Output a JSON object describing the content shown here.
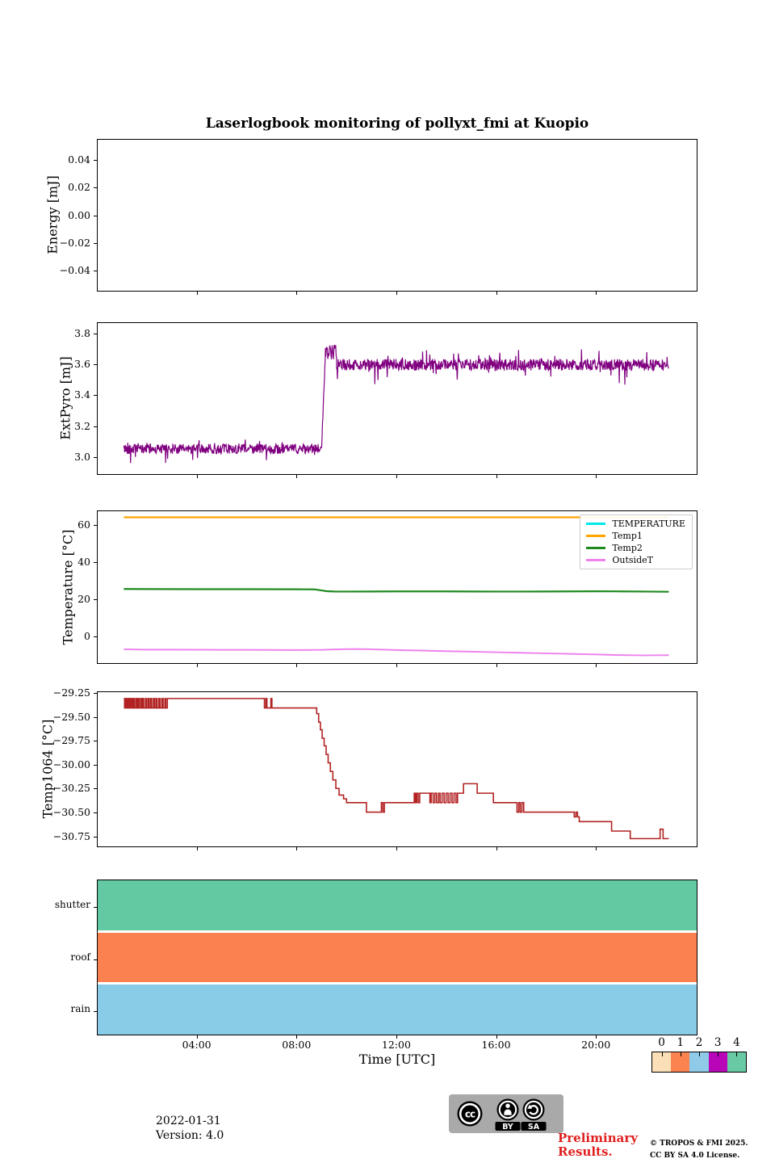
{
  "title": "Laserlogbook monitoring of pollyxt_fmi at Kuopio",
  "time_axis": {
    "label": "Time [UTC]",
    "range_hours": [
      0,
      24.07
    ],
    "ticks": [
      {
        "t": 4,
        "label": "04:00"
      },
      {
        "t": 8,
        "label": "08:00"
      },
      {
        "t": 12,
        "label": "12:00"
      },
      {
        "t": 16,
        "label": "16:00"
      },
      {
        "t": 20,
        "label": "20:00"
      }
    ]
  },
  "chart_data": [
    {
      "name": "energy",
      "type": "line",
      "ylabel": "Energy [mJ]",
      "ylim": [
        -0.0553,
        0.0553
      ],
      "yticks": [
        [
          0.04,
          "0.04"
        ],
        [
          0.02,
          "0.02"
        ],
        [
          0,
          "0.00"
        ],
        [
          -0.02,
          "−0.02"
        ],
        [
          -0.04,
          "−0.04"
        ]
      ],
      "series": []
    },
    {
      "name": "extpyro",
      "type": "line",
      "ylabel": "ExtPyro [mJ]",
      "ylim": [
        2.885,
        3.873
      ],
      "yticks": [
        [
          3.8,
          "3.8"
        ],
        [
          3.6,
          "3.6"
        ],
        [
          3.4,
          "3.4"
        ],
        [
          3.2,
          "3.2"
        ],
        [
          3.0,
          "3.0"
        ]
      ],
      "series": [
        {
          "name": "ExtPyro",
          "color": "#800080",
          "width": 1.2,
          "noisy": {
            "seed": 42,
            "dt": 0.016,
            "segments": [
              {
                "t0": 1.05,
                "t1": 9.0,
                "mean": 3.05,
                "amp": 0.032,
                "spike": 0.1
              },
              {
                "t0": 9.0,
                "t1": 9.15,
                "ramp": [
                  3.07,
                  3.68
                ],
                "amp": 0.02,
                "spike": 0
              },
              {
                "t0": 9.15,
                "t1": 9.6,
                "mean": 3.68,
                "amp": 0.05,
                "spike": 0.1
              },
              {
                "t0": 9.6,
                "t1": 22.95,
                "mean": 3.6,
                "amp": 0.038,
                "spike": 0.11
              }
            ]
          }
        }
      ]
    },
    {
      "name": "temperature",
      "type": "line",
      "ylabel": "Temperature [°C]",
      "ylim": [
        -14.8,
        67.8
      ],
      "yticks": [
        [
          60,
          "60"
        ],
        [
          40,
          "40"
        ],
        [
          20,
          "20"
        ],
        [
          0,
          "0"
        ]
      ],
      "legend": true,
      "series": [
        {
          "name": "TEMPERATURE",
          "color": "#00e8e8",
          "width": 2,
          "points": []
        },
        {
          "name": "Temp1",
          "color": "#ffa500",
          "width": 2.2,
          "points": [
            [
              1.05,
              64.5
            ],
            [
              22.95,
              64.5
            ]
          ]
        },
        {
          "name": "Temp2",
          "color": "#1e8a1e",
          "width": 2.2,
          "points": [
            [
              1.05,
              25.5
            ],
            [
              2,
              25.45
            ],
            [
              4,
              25.4
            ],
            [
              6,
              25.4
            ],
            [
              8,
              25.35
            ],
            [
              8.7,
              25.3
            ],
            [
              9.0,
              24.7
            ],
            [
              9.2,
              24.3
            ],
            [
              9.5,
              24.15
            ],
            [
              10,
              24.1
            ],
            [
              11,
              24.15
            ],
            [
              12,
              24.2
            ],
            [
              13,
              24.2
            ],
            [
              14,
              24.2
            ],
            [
              15,
              24.15
            ],
            [
              16,
              24.1
            ],
            [
              17,
              24.1
            ],
            [
              18,
              24.15
            ],
            [
              19,
              24.2
            ],
            [
              20,
              24.25
            ],
            [
              21,
              24.2
            ],
            [
              22,
              24.1
            ],
            [
              22.95,
              24.0
            ]
          ]
        },
        {
          "name": "OutsideT",
          "color": "#ee82ee",
          "width": 2,
          "points": [
            [
              1.05,
              -7.3
            ],
            [
              2,
              -7.5
            ],
            [
              3,
              -7.5
            ],
            [
              4,
              -7.55
            ],
            [
              5,
              -7.6
            ],
            [
              6,
              -7.6
            ],
            [
              7,
              -7.65
            ],
            [
              8,
              -7.7
            ],
            [
              9,
              -7.6
            ],
            [
              9.5,
              -7.4
            ],
            [
              10,
              -7.2
            ],
            [
              10.5,
              -7.15
            ],
            [
              11,
              -7.3
            ],
            [
              11.5,
              -7.5
            ],
            [
              12,
              -7.7
            ],
            [
              13,
              -8.0
            ],
            [
              14,
              -8.3
            ],
            [
              15,
              -8.6
            ],
            [
              16,
              -8.9
            ],
            [
              17,
              -9.2
            ],
            [
              18,
              -9.5
            ],
            [
              19,
              -9.8
            ],
            [
              20,
              -10.1
            ],
            [
              20.5,
              -10.3
            ],
            [
              21,
              -10.45
            ],
            [
              21.5,
              -10.55
            ],
            [
              22,
              -10.6
            ],
            [
              22.5,
              -10.55
            ],
            [
              22.95,
              -10.5
            ]
          ]
        }
      ]
    },
    {
      "name": "temp1064",
      "type": "step",
      "ylabel": "Temp1064 [°C]",
      "ylim": [
        -30.862,
        -29.233
      ],
      "yticks": [
        [
          -29.25,
          "−29.25"
        ],
        [
          -29.5,
          "−29.50"
        ],
        [
          -29.75,
          "−29.75"
        ],
        [
          -30,
          "−30.00"
        ],
        [
          -30.25,
          "−30.25"
        ],
        [
          -30.5,
          "−30.50"
        ],
        [
          -30.75,
          "−30.75"
        ]
      ],
      "series": [
        {
          "name": "Temp1064",
          "color": "#b22222",
          "width": 1.6,
          "points": [
            [
              1.05,
              -29.3
            ],
            [
              1.08,
              -29.4
            ],
            [
              1.11,
              -29.3
            ],
            [
              1.14,
              -29.4
            ],
            [
              1.18,
              -29.3
            ],
            [
              1.21,
              -29.4
            ],
            [
              1.26,
              -29.3
            ],
            [
              1.29,
              -29.4
            ],
            [
              1.33,
              -29.3
            ],
            [
              1.38,
              -29.4
            ],
            [
              1.43,
              -29.3
            ],
            [
              1.47,
              -29.4
            ],
            [
              1.53,
              -29.3
            ],
            [
              1.57,
              -29.4
            ],
            [
              1.62,
              -29.3
            ],
            [
              1.67,
              -29.4
            ],
            [
              1.73,
              -29.3
            ],
            [
              1.76,
              -29.4
            ],
            [
              1.81,
              -29.3
            ],
            [
              1.85,
              -29.4
            ],
            [
              1.92,
              -29.3
            ],
            [
              1.96,
              -29.4
            ],
            [
              2.02,
              -29.3
            ],
            [
              2.06,
              -29.4
            ],
            [
              2.12,
              -29.3
            ],
            [
              2.17,
              -29.4
            ],
            [
              2.24,
              -29.3
            ],
            [
              2.28,
              -29.4
            ],
            [
              2.34,
              -29.3
            ],
            [
              2.39,
              -29.4
            ],
            [
              2.46,
              -29.3
            ],
            [
              2.51,
              -29.4
            ],
            [
              2.58,
              -29.3
            ],
            [
              2.63,
              -29.4
            ],
            [
              2.7,
              -29.3
            ],
            [
              2.74,
              -29.4
            ],
            [
              2.8,
              -29.3
            ],
            [
              6.7,
              -29.4
            ],
            [
              6.76,
              -29.3
            ],
            [
              6.8,
              -29.4
            ],
            [
              6.96,
              -29.3
            ],
            [
              7.0,
              -29.4
            ],
            [
              8.8,
              -29.46
            ],
            [
              8.88,
              -29.55
            ],
            [
              8.95,
              -29.63
            ],
            [
              9.02,
              -29.72
            ],
            [
              9.1,
              -29.8
            ],
            [
              9.18,
              -29.89
            ],
            [
              9.26,
              -29.98
            ],
            [
              9.35,
              -30.07
            ],
            [
              9.45,
              -30.16
            ],
            [
              9.57,
              -30.25
            ],
            [
              9.7,
              -30.32
            ],
            [
              9.88,
              -30.36
            ],
            [
              10.0,
              -30.4
            ],
            [
              10.8,
              -30.5
            ],
            [
              11.4,
              -30.4
            ],
            [
              11.46,
              -30.5
            ],
            [
              11.52,
              -30.4
            ],
            [
              12.72,
              -30.3
            ],
            [
              12.77,
              -30.4
            ],
            [
              12.82,
              -30.3
            ],
            [
              12.88,
              -30.4
            ],
            [
              12.94,
              -30.3
            ],
            [
              13.35,
              -30.4
            ],
            [
              13.4,
              -30.3
            ],
            [
              13.48,
              -30.4
            ],
            [
              13.55,
              -30.3
            ],
            [
              13.62,
              -30.4
            ],
            [
              13.7,
              -30.3
            ],
            [
              13.76,
              -30.4
            ],
            [
              13.84,
              -30.3
            ],
            [
              13.92,
              -30.4
            ],
            [
              14.0,
              -30.3
            ],
            [
              14.08,
              -30.4
            ],
            [
              14.16,
              -30.3
            ],
            [
              14.24,
              -30.4
            ],
            [
              14.32,
              -30.3
            ],
            [
              14.4,
              -30.4
            ],
            [
              14.46,
              -30.3
            ],
            [
              14.7,
              -30.2
            ],
            [
              15.25,
              -30.3
            ],
            [
              15.9,
              -30.4
            ],
            [
              16.85,
              -30.5
            ],
            [
              16.92,
              -30.4
            ],
            [
              16.98,
              -30.5
            ],
            [
              17.05,
              -30.4
            ],
            [
              17.12,
              -30.5
            ],
            [
              19.15,
              -30.55
            ],
            [
              19.22,
              -30.5
            ],
            [
              19.28,
              -30.55
            ],
            [
              19.35,
              -30.6
            ],
            [
              20.65,
              -30.7
            ],
            [
              21.4,
              -30.78
            ],
            [
              22.6,
              -30.68
            ],
            [
              22.72,
              -30.78
            ],
            [
              22.95,
              -30.78
            ]
          ]
        }
      ]
    },
    {
      "name": "status",
      "type": "bars",
      "categories": [
        {
          "label": "shutter",
          "value": 4,
          "color": "#62c9a2"
        },
        {
          "label": "roof",
          "value": 1,
          "color": "#fc8150"
        },
        {
          "label": "rain",
          "value": 2,
          "color": "#89cce8"
        }
      ]
    }
  ],
  "colorbar": {
    "values": [
      "0",
      "1",
      "2",
      "3",
      "4"
    ],
    "colors": [
      "#fbdfb6",
      "#fb8350",
      "#8fcbe8",
      "#b705b7",
      "#68c9a4"
    ]
  },
  "footer": {
    "date": "2022-01-31",
    "version": "Version: 4.0",
    "preliminary": "Preliminary Results.",
    "copyright_line1": "© TROPOS & FMI 2025.",
    "copyright_line2": "CC BY SA 4.0 License.",
    "cc_badge": {
      "cc": "cc",
      "by": "BY",
      "sa": "SA"
    }
  }
}
